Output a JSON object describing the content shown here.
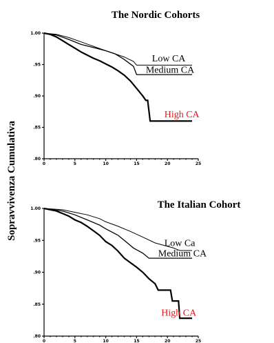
{
  "ylabel": "Sopravvivenza Cumulativa",
  "colors": {
    "text": "#000000",
    "high": "#e8141b",
    "line": "#000000"
  },
  "chart_data": [
    {
      "type": "line",
      "title": "The Nordic Cohorts",
      "xlim": [
        0,
        25
      ],
      "ylim": [
        0.8,
        1.0
      ],
      "x_ticks": [
        "0",
        "5",
        "10",
        "15",
        "20",
        "25"
      ],
      "y_ticks": [
        "1.00",
        ".95",
        ".90",
        ".85",
        ".80"
      ],
      "y_tick_values": [
        1.0,
        0.95,
        0.9,
        0.85,
        0.8
      ],
      "series": [
        {
          "name": "Low CA",
          "color": "#000000",
          "width": 1.0,
          "points": [
            [
              0,
              1.0
            ],
            [
              2,
              0.998
            ],
            [
              4,
              0.993
            ],
            [
              6,
              0.986
            ],
            [
              8,
              0.979
            ],
            [
              10,
              0.972
            ],
            [
              11.5,
              0.967
            ],
            [
              13,
              0.962
            ],
            [
              14.5,
              0.955
            ],
            [
              15,
              0.949
            ],
            [
              24,
              0.949
            ]
          ]
        },
        {
          "name": "Medium CA",
          "color": "#000000",
          "width": 1.3,
          "points": [
            [
              0,
              1.0
            ],
            [
              2,
              0.997
            ],
            [
              4,
              0.99
            ],
            [
              6,
              0.982
            ],
            [
              8,
              0.977
            ],
            [
              10,
              0.972
            ],
            [
              11.5,
              0.967
            ],
            [
              13,
              0.958
            ],
            [
              14.5,
              0.947
            ],
            [
              15,
              0.934
            ],
            [
              24,
              0.934
            ]
          ]
        },
        {
          "name": "High CA",
          "color": "#000000",
          "width": 2.2,
          "points": [
            [
              0,
              1.0
            ],
            [
              1,
              0.998
            ],
            [
              2,
              0.994
            ],
            [
              3,
              0.988
            ],
            [
              4,
              0.982
            ],
            [
              5,
              0.976
            ],
            [
              6,
              0.97
            ],
            [
              7,
              0.965
            ],
            [
              8,
              0.96
            ],
            [
              9,
              0.956
            ],
            [
              10,
              0.951
            ],
            [
              11,
              0.946
            ],
            [
              12,
              0.94
            ],
            [
              13,
              0.933
            ],
            [
              14,
              0.924
            ],
            [
              15,
              0.912
            ],
            [
              16,
              0.9
            ],
            [
              16.5,
              0.893
            ],
            [
              16.8,
              0.893
            ],
            [
              17.2,
              0.86
            ],
            [
              24,
              0.86
            ]
          ]
        }
      ],
      "labels": [
        {
          "text": "Low CA",
          "x": 17.5,
          "y": 0.955,
          "color": "#000000"
        },
        {
          "text": "Medium CA",
          "x": 16.5,
          "y": 0.937,
          "color": "#000000"
        },
        {
          "text": "High CA",
          "x": 19.5,
          "y": 0.866,
          "color": "#e8141b"
        }
      ]
    },
    {
      "type": "line",
      "title": "The Italian Cohort",
      "xlim": [
        0,
        25
      ],
      "ylim": [
        0.8,
        1.0
      ],
      "x_ticks": [
        "0",
        "5",
        "10",
        "15",
        "20",
        "25"
      ],
      "y_ticks": [
        "1.00",
        ".95",
        ".90",
        ".85",
        ".80"
      ],
      "y_tick_values": [
        1.0,
        0.95,
        0.9,
        0.85,
        0.8
      ],
      "series": [
        {
          "name": "Low Ca",
          "color": "#000000",
          "width": 1.0,
          "points": [
            [
              0,
              1.0
            ],
            [
              3,
              0.998
            ],
            [
              5,
              0.994
            ],
            [
              7,
              0.99
            ],
            [
              9,
              0.984
            ],
            [
              10,
              0.979
            ],
            [
              12,
              0.972
            ],
            [
              14,
              0.964
            ],
            [
              16,
              0.955
            ],
            [
              18,
              0.946
            ],
            [
              21,
              0.938
            ],
            [
              22,
              0.934
            ],
            [
              24,
              0.934
            ]
          ]
        },
        {
          "name": "Medium CA",
          "color": "#000000",
          "width": 1.3,
          "points": [
            [
              0,
              1.0
            ],
            [
              3,
              0.996
            ],
            [
              5,
              0.99
            ],
            [
              7,
              0.982
            ],
            [
              9,
              0.974
            ],
            [
              10,
              0.968
            ],
            [
              12,
              0.958
            ],
            [
              13,
              0.95
            ],
            [
              14.5,
              0.938
            ],
            [
              16,
              0.93
            ],
            [
              17,
              0.922
            ],
            [
              24,
              0.922
            ]
          ]
        },
        {
          "name": "High CA",
          "color": "#000000",
          "width": 2.2,
          "points": [
            [
              0,
              1.0
            ],
            [
              2,
              0.996
            ],
            [
              3,
              0.992
            ],
            [
              4,
              0.988
            ],
            [
              5,
              0.982
            ],
            [
              6,
              0.978
            ],
            [
              7,
              0.972
            ],
            [
              8,
              0.965
            ],
            [
              9,
              0.958
            ],
            [
              10,
              0.948
            ],
            [
              11,
              0.942
            ],
            [
              12,
              0.933
            ],
            [
              13,
              0.922
            ],
            [
              14,
              0.915
            ],
            [
              15,
              0.908
            ],
            [
              16,
              0.9
            ],
            [
              17,
              0.89
            ],
            [
              18,
              0.882
            ],
            [
              18.5,
              0.872
            ],
            [
              20.5,
              0.872
            ],
            [
              20.8,
              0.855
            ],
            [
              21.8,
              0.855
            ],
            [
              22,
              0.828
            ],
            [
              24,
              0.828
            ]
          ]
        }
      ],
      "labels": [
        {
          "text": "Low Ca",
          "x": 19.5,
          "y": 0.941,
          "color": "#000000"
        },
        {
          "text": "Medium CA",
          "x": 18.5,
          "y": 0.925,
          "color": "#000000"
        },
        {
          "text": "High CA",
          "x": 19.0,
          "y": 0.832,
          "color": "#e8141b"
        }
      ]
    }
  ]
}
